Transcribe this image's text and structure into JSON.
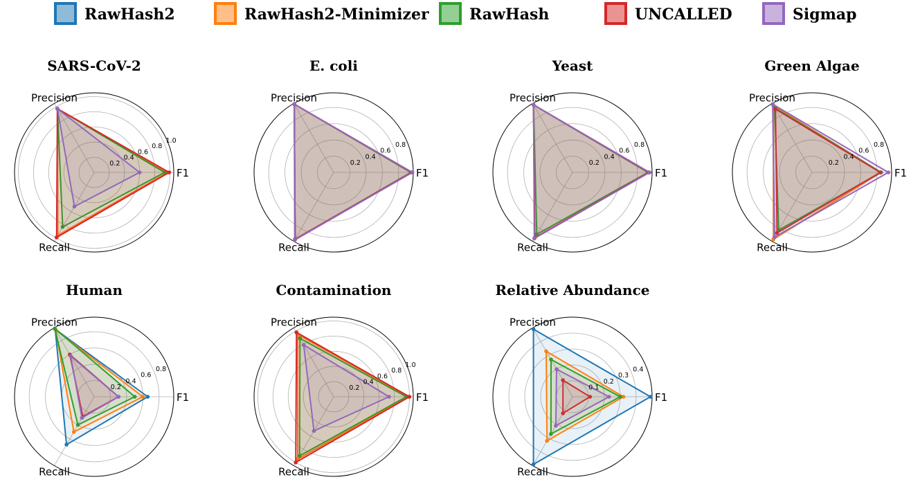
{
  "chart_data": {
    "type": "radar",
    "axes": [
      "Precision",
      "F1",
      "Recall"
    ],
    "legend": {
      "placement": "top",
      "entries": [
        {
          "name": "RawHash2",
          "color": "#1f77b4"
        },
        {
          "name": "RawHash2-Minimizer",
          "color": "#ff7f0e"
        },
        {
          "name": "RawHash",
          "color": "#2ca02c"
        },
        {
          "name": "UNCALLED",
          "color": "#d62728"
        },
        {
          "name": "Sigmap",
          "color": "#9467bd"
        }
      ]
    },
    "panels": [
      {
        "title": "SARS-CoV-2",
        "rmax": 1.05,
        "rticks": [
          0.2,
          0.4,
          0.6,
          0.8,
          1.0
        ],
        "tick_labels": [
          "0.2",
          "0.4",
          "0.6",
          "0.8",
          "1.0"
        ],
        "series": [
          {
            "name": "RawHash2",
            "values": [
              0.97,
              0.97,
              0.96
            ]
          },
          {
            "name": "RawHash2-Minimizer",
            "values": [
              0.97,
              0.97,
              0.96
            ]
          },
          {
            "name": "RawHash",
            "values": [
              0.97,
              0.93,
              0.83
            ]
          },
          {
            "name": "UNCALLED",
            "values": [
              0.97,
              0.99,
              0.99
            ]
          },
          {
            "name": "Sigmap",
            "values": [
              0.97,
              0.6,
              0.52
            ]
          }
        ]
      },
      {
        "title": "E. coli",
        "rmax": 0.98,
        "rticks": [
          0.2,
          0.4,
          0.6,
          0.8
        ],
        "tick_labels": [
          "0.2",
          "0.4",
          "0.6",
          "0.8"
        ],
        "series": [
          {
            "name": "RawHash2",
            "values": [
              0.97,
              0.96,
              0.95
            ]
          },
          {
            "name": "RawHash2-Minimizer",
            "values": [
              0.97,
              0.96,
              0.95
            ]
          },
          {
            "name": "RawHash",
            "values": [
              0.97,
              0.95,
              0.95
            ]
          },
          {
            "name": "UNCALLED",
            "values": [
              0.97,
              0.96,
              0.95
            ]
          },
          {
            "name": "Sigmap",
            "values": [
              0.97,
              0.97,
              0.96
            ]
          }
        ]
      },
      {
        "title": "Yeast",
        "rmax": 0.98,
        "rticks": [
          0.2,
          0.4,
          0.6,
          0.8
        ],
        "tick_labels": [
          "0.2",
          "0.4",
          "0.6",
          "0.8"
        ],
        "series": [
          {
            "name": "RawHash2",
            "values": [
              0.96,
              0.94,
              0.93
            ]
          },
          {
            "name": "RawHash2-Minimizer",
            "values": [
              0.96,
              0.94,
              0.93
            ]
          },
          {
            "name": "RawHash",
            "values": [
              0.96,
              0.93,
              0.88
            ]
          },
          {
            "name": "UNCALLED",
            "values": [
              0.96,
              0.94,
              0.93
            ]
          },
          {
            "name": "Sigmap",
            "values": [
              0.96,
              0.95,
              0.94
            ]
          }
        ]
      },
      {
        "title": "Green Algae",
        "rmax": 0.98,
        "rticks": [
          0.2,
          0.4,
          0.6,
          0.8
        ],
        "tick_labels": [
          "0.2",
          "0.4",
          "0.6",
          "0.8"
        ],
        "series": [
          {
            "name": "RawHash2",
            "values": [
              0.95,
              0.85,
              0.95
            ]
          },
          {
            "name": "RawHash2-Minimizer",
            "values": [
              0.95,
              0.85,
              0.95
            ]
          },
          {
            "name": "RawHash",
            "values": [
              0.92,
              0.85,
              0.82
            ]
          },
          {
            "name": "UNCALLED",
            "values": [
              0.9,
              0.84,
              0.86
            ]
          },
          {
            "name": "Sigmap",
            "values": [
              0.97,
              0.94,
              0.92
            ]
          }
        ]
      },
      {
        "title": "Human",
        "rmax": 0.98,
        "rticks": [
          0.2,
          0.4,
          0.6,
          0.8
        ],
        "tick_labels": [
          "0.2",
          "0.4",
          "0.6",
          "0.8"
        ],
        "series": [
          {
            "name": "RawHash2",
            "values": [
              0.96,
              0.66,
              0.68
            ]
          },
          {
            "name": "RawHash2-Minimizer",
            "values": [
              0.95,
              0.6,
              0.5
            ]
          },
          {
            "name": "RawHash",
            "values": [
              0.97,
              0.5,
              0.4
            ]
          },
          {
            "name": "UNCALLED",
            "values": [
              0.6,
              0.3,
              0.28
            ]
          },
          {
            "name": "Sigmap",
            "values": [
              0.58,
              0.3,
              0.3
            ]
          }
        ]
      },
      {
        "title": "Contamination",
        "rmax": 1.05,
        "rticks": [
          0.2,
          0.4,
          0.6,
          0.8,
          1.0
        ],
        "tick_labels": [
          "0.2",
          "0.4",
          "0.6",
          "0.8",
          "1.0"
        ],
        "series": [
          {
            "name": "RawHash2",
            "values": [
              0.95,
              0.99,
              0.95
            ]
          },
          {
            "name": "RawHash2-Minimizer",
            "values": [
              0.95,
              0.99,
              0.95
            ]
          },
          {
            "name": "RawHash",
            "values": [
              0.89,
              0.96,
              0.9
            ]
          },
          {
            "name": "UNCALLED",
            "values": [
              0.98,
              1.0,
              1.0
            ]
          },
          {
            "name": "Sigmap",
            "values": [
              0.79,
              0.73,
              0.52
            ]
          }
        ]
      },
      {
        "title": "Relative Abundance",
        "rmax": 0.5,
        "rticks": [
          0.1,
          0.2,
          0.3,
          0.4
        ],
        "tick_labels": [
          "0.1",
          "0.2",
          "0.3",
          "0.4"
        ],
        "series": [
          {
            "name": "RawHash2",
            "values": [
              0.49,
              0.49,
              0.49
            ]
          },
          {
            "name": "RawHash2-Minimizer",
            "values": [
              0.33,
              0.32,
              0.32
            ]
          },
          {
            "name": "RawHash",
            "values": [
              0.27,
              0.3,
              0.27
            ]
          },
          {
            "name": "UNCALLED",
            "values": [
              0.12,
              0.11,
              0.12
            ]
          },
          {
            "name": "Sigmap",
            "values": [
              0.2,
              0.23,
              0.21
            ]
          }
        ]
      }
    ]
  }
}
